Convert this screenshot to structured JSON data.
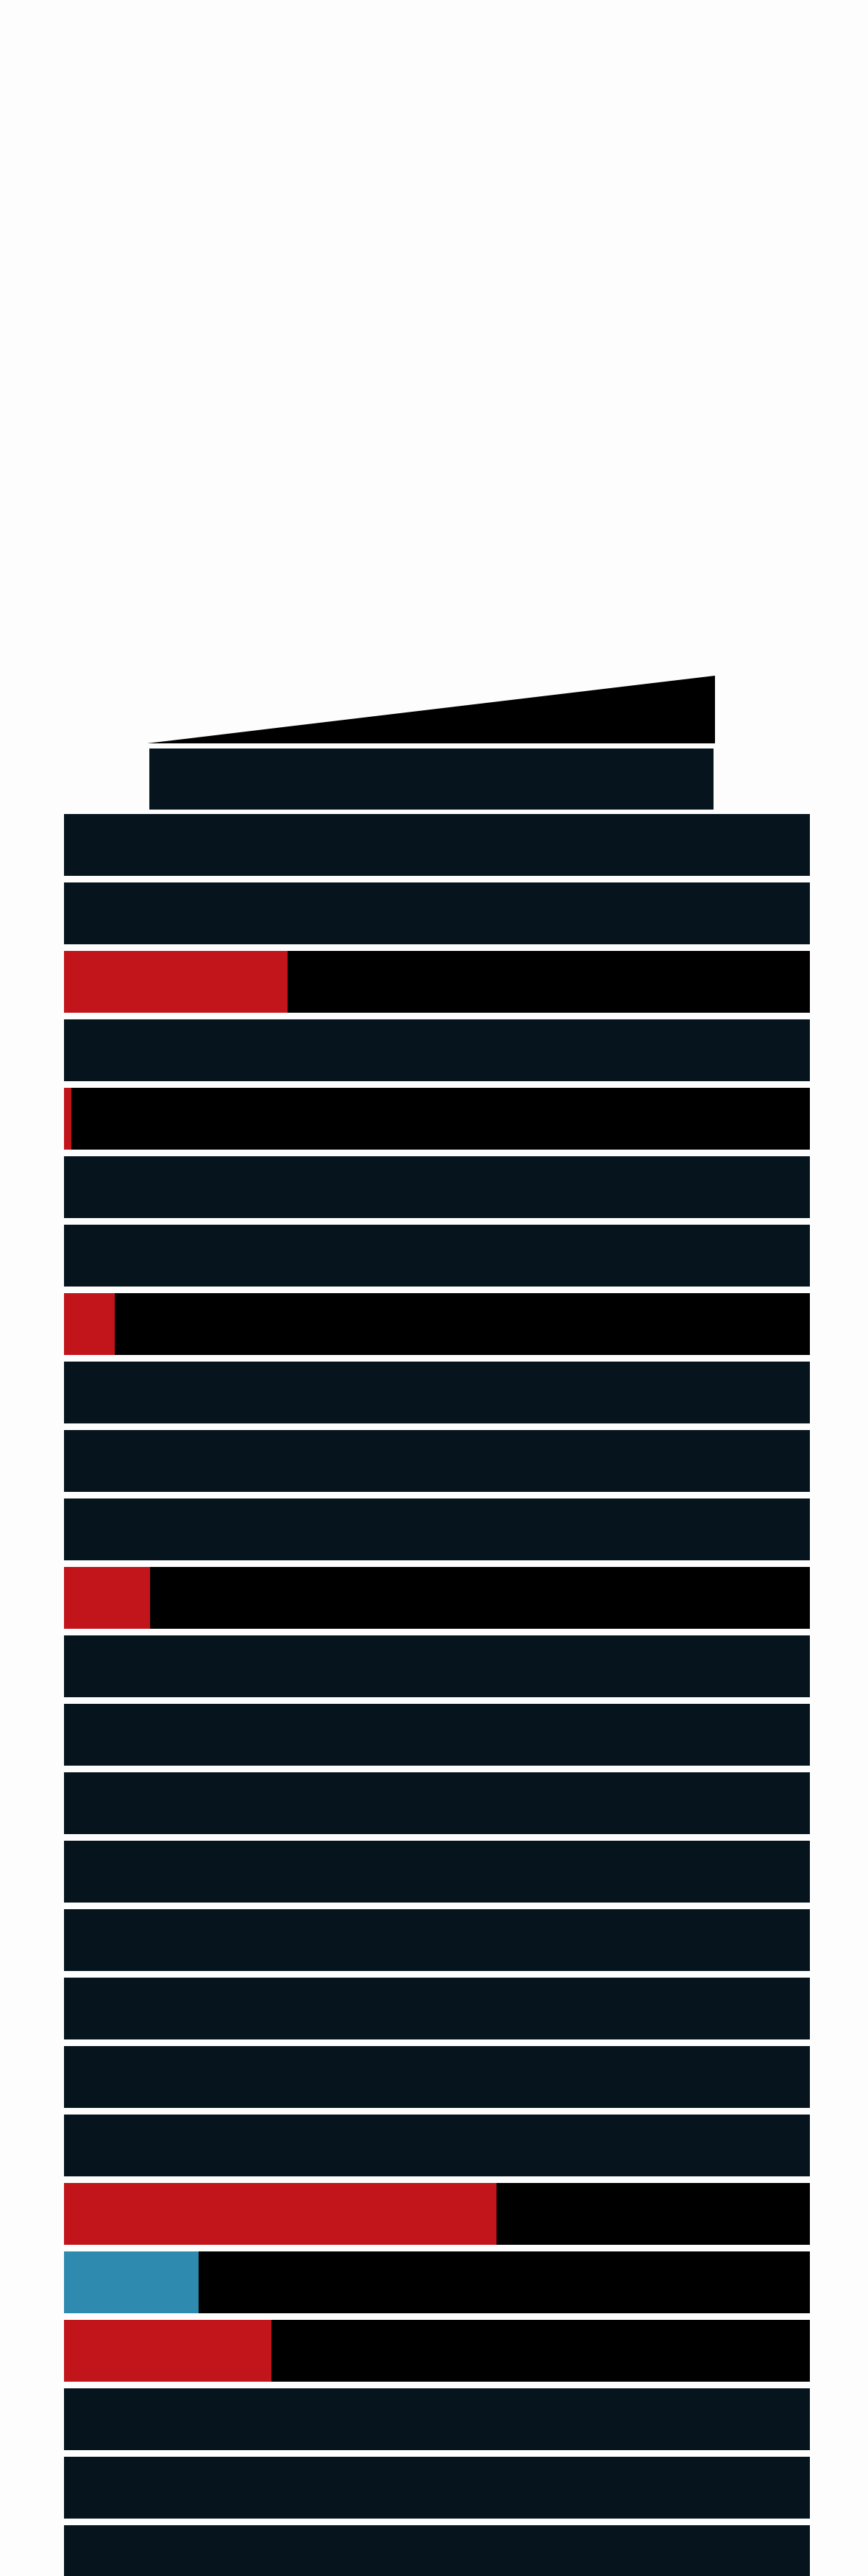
{
  "colors": {
    "background": "#fdfdfd",
    "floor": "#06151d",
    "floor_highlight": "#000000",
    "red": "#c1141b",
    "blue": "#2f8ab0"
  },
  "floors": [
    {
      "fill": 0,
      "color": ""
    },
    {
      "fill": 0,
      "color": ""
    },
    {
      "fill": 0.3,
      "color": "red"
    },
    {
      "fill": 0,
      "color": ""
    },
    {
      "fill": 0.01,
      "color": "red"
    },
    {
      "fill": 0,
      "color": ""
    },
    {
      "fill": 0,
      "color": ""
    },
    {
      "fill": 0.068,
      "color": "red"
    },
    {
      "fill": 0,
      "color": ""
    },
    {
      "fill": 0,
      "color": ""
    },
    {
      "fill": 0,
      "color": ""
    },
    {
      "fill": 0.115,
      "color": "red"
    },
    {
      "fill": 0,
      "color": ""
    },
    {
      "fill": 0,
      "color": ""
    },
    {
      "fill": 0,
      "color": ""
    },
    {
      "fill": 0,
      "color": ""
    },
    {
      "fill": 0,
      "color": ""
    },
    {
      "fill": 0,
      "color": ""
    },
    {
      "fill": 0,
      "color": ""
    },
    {
      "fill": 0,
      "color": ""
    },
    {
      "fill": 0.58,
      "color": "red"
    },
    {
      "fill": 0.18,
      "color": "blue"
    },
    {
      "fill": 0.278,
      "color": "red"
    },
    {
      "fill": 0,
      "color": ""
    },
    {
      "fill": 0,
      "color": ""
    },
    {
      "fill": 0,
      "color": ""
    }
  ]
}
